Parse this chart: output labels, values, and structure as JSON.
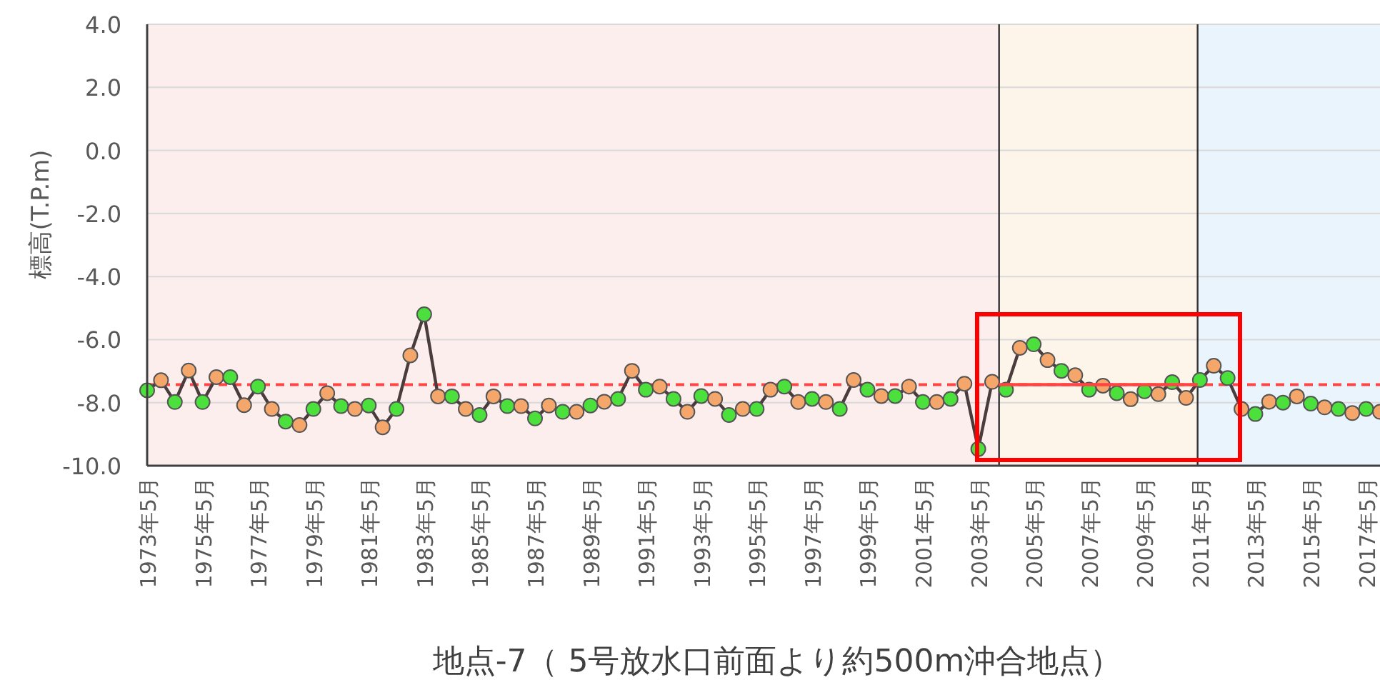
{
  "chart_data": {
    "type": "line",
    "xlabel": "地点-7（ 5号放水口前面より約500m沖合地点）",
    "ylabel": "標高(T.P.m)",
    "xlim": [
      "1973-05",
      "2017-11"
    ],
    "ylim": [
      -10,
      4
    ],
    "yticks": [
      {
        "value": -10,
        "label": "-10.0"
      },
      {
        "value": -8,
        "label": "-8.0"
      },
      {
        "value": -6,
        "label": "-6.0"
      },
      {
        "value": -4,
        "label": "-4.0"
      },
      {
        "value": -2,
        "label": "-2.0"
      },
      {
        "value": 0,
        "label": "0.0"
      },
      {
        "value": 2,
        "label": "2.0"
      },
      {
        "value": 4,
        "label": "4.0"
      }
    ],
    "xticks": [
      {
        "value": "1973-05",
        "label": "1973年5月"
      },
      {
        "value": "1975-05",
        "label": "1975年5月"
      },
      {
        "value": "1977-05",
        "label": "1977年5月"
      },
      {
        "value": "1979-05",
        "label": "1979年5月"
      },
      {
        "value": "1981-05",
        "label": "1981年5月"
      },
      {
        "value": "1983-05",
        "label": "1983年5月"
      },
      {
        "value": "1985-05",
        "label": "1985年5月"
      },
      {
        "value": "1987-05",
        "label": "1987年5月"
      },
      {
        "value": "1989-05",
        "label": "1989年5月"
      },
      {
        "value": "1991-05",
        "label": "1991年5月"
      },
      {
        "value": "1993-05",
        "label": "1993年5月"
      },
      {
        "value": "1995-05",
        "label": "1995年5月"
      },
      {
        "value": "1997-05",
        "label": "1997年5月"
      },
      {
        "value": "1999-05",
        "label": "1999年5月"
      },
      {
        "value": "2001-05",
        "label": "2001年5月"
      },
      {
        "value": "2003-05",
        "label": "2003年5月"
      },
      {
        "value": "2005-05",
        "label": "2005年5月"
      },
      {
        "value": "2007-05",
        "label": "2007年5月"
      },
      {
        "value": "2009-05",
        "label": "2009年5月"
      },
      {
        "value": "2011-05",
        "label": "2011年5月"
      },
      {
        "value": "2013-05",
        "label": "2013年5月"
      },
      {
        "value": "2015-05",
        "label": "2015年5月"
      },
      {
        "value": "2017-05",
        "label": "2017年5月"
      }
    ],
    "grid": "y",
    "marker": "circle",
    "line_style": "solid",
    "bands": [
      {
        "axis": "x",
        "from": "1973-05",
        "to": "2004-02",
        "color": "#fdeeee"
      },
      {
        "axis": "x",
        "from": "2004-02",
        "to": "2011-04",
        "color": "#fdf4ea"
      },
      {
        "axis": "x",
        "from": "2011-04",
        "to": "2017-11",
        "color": "#eaf4fd"
      }
    ],
    "ref_lines": [
      {
        "axis": "y",
        "value": -7.43,
        "color": "#ff4444",
        "line_style": "dashed"
      },
      {
        "axis": "x",
        "value": "2004-02",
        "color": "#333333",
        "line_style": "solid"
      },
      {
        "axis": "x",
        "value": "2011-04",
        "color": "#333333",
        "line_style": "solid"
      }
    ],
    "series": [
      {
        "color": "#4a3c3c",
        "x": [
          "1973-05",
          "1973-11",
          "1974-05",
          "1974-11",
          "1975-05",
          "1975-11",
          "1976-05",
          "1976-11",
          "1977-05",
          "1977-11",
          "1978-05",
          "1978-11",
          "1979-05",
          "1979-11",
          "1980-05",
          "1980-11",
          "1981-05",
          "1981-11",
          "1982-05",
          "1982-11",
          "1983-05",
          "1983-11",
          "1984-05",
          "1984-11",
          "1985-05",
          "1985-11",
          "1986-05",
          "1986-11",
          "1987-05",
          "1987-11",
          "1988-05",
          "1988-11",
          "1989-05",
          "1989-11",
          "1990-05",
          "1990-11",
          "1991-05",
          "1991-11",
          "1992-05",
          "1992-11",
          "1993-05",
          "1993-11",
          "1994-05",
          "1994-11",
          "1995-05",
          "1995-11",
          "1996-05",
          "1996-11",
          "1997-05",
          "1997-11",
          "1998-05",
          "1998-11",
          "1999-05",
          "1999-11",
          "2000-05",
          "2000-11",
          "2001-05",
          "2001-11",
          "2002-05",
          "2002-11",
          "2003-05",
          "2003-11",
          "2004-05",
          "2004-11",
          "2005-05",
          "2005-11",
          "2006-05",
          "2006-11",
          "2007-05",
          "2007-11",
          "2008-05",
          "2008-11",
          "2009-05",
          "2009-11",
          "2010-05",
          "2010-11",
          "2011-05",
          "2011-11",
          "2012-05",
          "2012-11",
          "2013-05",
          "2013-11",
          "2014-05",
          "2014-11",
          "2015-05",
          "2015-11",
          "2016-05",
          "2016-11",
          "2017-05",
          "2017-11"
        ],
        "values": [
          -7.61,
          -7.29,
          -7.98,
          -6.98,
          -7.98,
          -7.19,
          -7.19,
          -8.08,
          -7.49,
          -8.2,
          -8.6,
          -8.71,
          -8.2,
          -7.7,
          -8.11,
          -8.2,
          -8.09,
          -8.78,
          -8.2,
          -6.5,
          -5.2,
          -7.8,
          -7.8,
          -8.2,
          -8.39,
          -7.8,
          -8.11,
          -8.11,
          -8.5,
          -8.09,
          -8.29,
          -8.29,
          -8.09,
          -7.97,
          -7.88,
          -6.99,
          -7.59,
          -7.49,
          -7.88,
          -8.29,
          -7.79,
          -7.88,
          -8.39,
          -8.2,
          -8.2,
          -7.59,
          -7.49,
          -7.98,
          -7.88,
          -7.98,
          -8.2,
          -7.28,
          -7.59,
          -7.79,
          -7.79,
          -7.49,
          -7.98,
          -7.98,
          -7.88,
          -7.4,
          -9.47,
          -7.34,
          -7.59,
          -6.26,
          -6.15,
          -6.65,
          -6.99,
          -7.13,
          -7.59,
          -7.46,
          -7.7,
          -7.89,
          -7.64,
          -7.73,
          -7.35,
          -7.85,
          -7.28,
          -6.83,
          -7.22,
          -8.2,
          -8.36,
          -7.97,
          -8.0,
          -7.8,
          -8.03,
          -8.15,
          -8.2,
          -8.33,
          -8.2,
          -8.29
        ],
        "colors": [
          "#4ce03c",
          "#f5a66a",
          "#4ce03c",
          "#f5a66a",
          "#4ce03c",
          "#f5a66a",
          "#4ce03c",
          "#f5a66a",
          "#4ce03c",
          "#f5a66a",
          "#4ce03c",
          "#f5a66a",
          "#4ce03c",
          "#f5a66a",
          "#4ce03c",
          "#f5a66a",
          "#4ce03c",
          "#f5a66a",
          "#4ce03c",
          "#f5a66a",
          "#4ce03c",
          "#f5a66a",
          "#4ce03c",
          "#f5a66a",
          "#4ce03c",
          "#f5a66a",
          "#4ce03c",
          "#f5a66a",
          "#4ce03c",
          "#f5a66a",
          "#4ce03c",
          "#f5a66a",
          "#4ce03c",
          "#f5a66a",
          "#4ce03c",
          "#f5a66a",
          "#4ce03c",
          "#f5a66a",
          "#4ce03c",
          "#f5a66a",
          "#4ce03c",
          "#f5a66a",
          "#4ce03c",
          "#f5a66a",
          "#4ce03c",
          "#f5a66a",
          "#4ce03c",
          "#f5a66a",
          "#4ce03c",
          "#f5a66a",
          "#4ce03c",
          "#f5a66a",
          "#4ce03c",
          "#f5a66a",
          "#4ce03c",
          "#f5a66a",
          "#4ce03c",
          "#f5a66a",
          "#4ce03c",
          "#f5a66a",
          "#4ce03c",
          "#f5a66a",
          "#4ce03c",
          "#f5a66a",
          "#4ce03c",
          "#f5a66a",
          "#4ce03c",
          "#f5a66a",
          "#4ce03c",
          "#f5a66a",
          "#4ce03c",
          "#f5a66a",
          "#4ce03c",
          "#f5a66a",
          "#4ce03c",
          "#f5a66a",
          "#4ce03c",
          "#f5a66a",
          "#4ce03c",
          "#f5a66a",
          "#4ce03c",
          "#f5a66a",
          "#4ce03c",
          "#f5a66a",
          "#4ce03c",
          "#f5a66a",
          "#4ce03c",
          "#f5a66a",
          "#4ce03c",
          "#f5a66a"
        ]
      },
      {
        "type": "line",
        "color": "#ff4444",
        "marker": "none",
        "x": [
          "2004-02",
          "2011-04"
        ],
        "values": [
          -7.43,
          -7.43
        ]
      }
    ]
  }
}
